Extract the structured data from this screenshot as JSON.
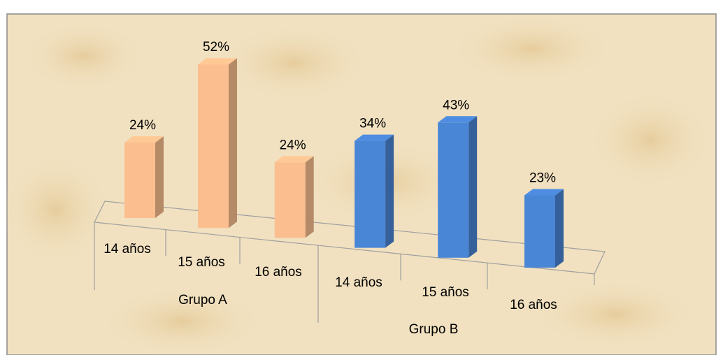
{
  "chart_data": {
    "type": "bar3d",
    "categories": [
      "14 años",
      "15 años",
      "16 años"
    ],
    "series": [
      {
        "name": "Grupo A",
        "color": "#fbbf8f",
        "values": [
          24,
          52,
          24
        ],
        "value_labels": [
          "24%",
          "52%",
          "24%"
        ]
      },
      {
        "name": "Grupo B",
        "color": "#4a86d6",
        "values": [
          34,
          43,
          23
        ],
        "value_labels": [
          "34%",
          "43%",
          "23%"
        ]
      }
    ]
  }
}
